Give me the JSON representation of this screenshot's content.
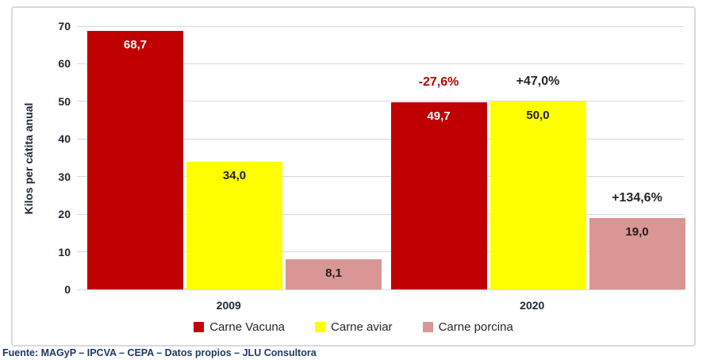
{
  "chart_data": {
    "type": "bar",
    "title": "",
    "xlabel": "",
    "ylabel": "Kilos per cátita anual",
    "ylim": [
      0,
      70
    ],
    "yticks": [
      0,
      10,
      20,
      30,
      40,
      50,
      60,
      70
    ],
    "grid": "horizontal",
    "legend_position": "bottom",
    "categories": [
      "2009",
      "2020"
    ],
    "series": [
      {
        "name": "Carne Vacuna",
        "color": "#C00000",
        "values": [
          68.7,
          49.7
        ],
        "value_labels": [
          "68,7",
          "49,7"
        ],
        "label_color": "#FFFFFF"
      },
      {
        "name": "Carne aviar",
        "color": "#FFFF00",
        "values": [
          34.0,
          50.0
        ],
        "value_labels": [
          "34,0",
          "50,0"
        ],
        "label_color": "#1F1F1F"
      },
      {
        "name": "Carne porcina",
        "color": "#D99694",
        "values": [
          8.1,
          19.0
        ],
        "value_labels": [
          "8,1",
          "19,0"
        ],
        "label_color": "#1F1F1F"
      }
    ],
    "annotations": [
      {
        "text": "-27,6%",
        "series": "Carne Vacuna",
        "category": "2020",
        "color": "#C00000"
      },
      {
        "text": "+47,0%",
        "series": "Carne aviar",
        "category": "2020",
        "color": "#262626"
      },
      {
        "text": "+134,6%",
        "series": "Carne porcina",
        "category": "2020",
        "color": "#262626"
      }
    ]
  },
  "colors": {
    "frame_border": "#DADADA",
    "grid": "#D8D8E6",
    "axis_text": "#1F2533",
    "legend_text": "#262626",
    "footer_text": "#1F3864"
  },
  "footer": {
    "source": "Fuente: MAGyP – IPCVA – CEPA – Datos propios – JLU Consultora"
  }
}
